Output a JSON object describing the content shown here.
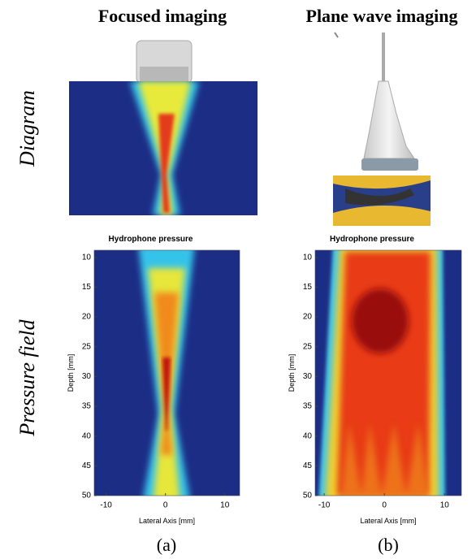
{
  "columns": [
    "Focused imaging",
    "Plane wave imaging"
  ],
  "row_labels": [
    "Diagram",
    "Pressure field"
  ],
  "captions": [
    "(a)",
    "(b)"
  ],
  "chart_data": [
    {
      "type": "heatmap",
      "title": "Hydrophone pressure",
      "x_label": "Lateral Axis [mm]",
      "y_label": "Depth [mm]",
      "xlim": [
        -12,
        12.5
      ],
      "ylim": [
        8.8,
        50
      ],
      "xticks": [
        -10,
        0,
        10
      ],
      "yticks": [
        10,
        15,
        20,
        25,
        30,
        35,
        40,
        45,
        50
      ],
      "y_inverted": true
    },
    {
      "type": "heatmap",
      "title": "Hydrophone pressure",
      "x_label": "Lateral Axis [mm]",
      "y_label": "Depth [mm]",
      "xlim": [
        -11.5,
        12.8
      ],
      "ylim": [
        8.8,
        50
      ],
      "xticks": [
        -10,
        0,
        10
      ],
      "yticks": [
        10,
        15,
        20,
        25,
        30,
        35,
        40,
        45,
        50
      ],
      "y_inverted": true
    }
  ]
}
